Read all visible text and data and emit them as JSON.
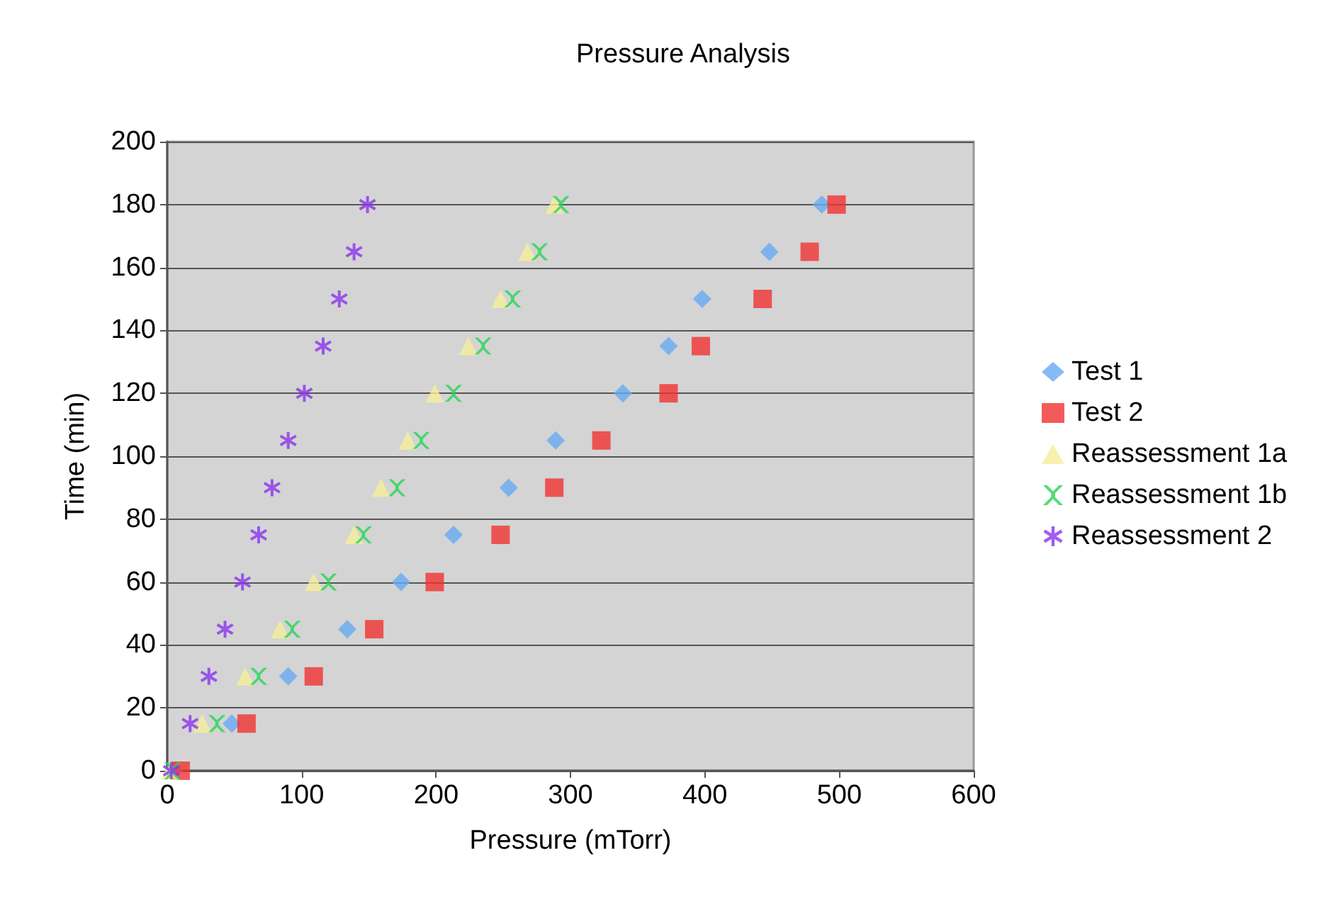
{
  "chart_data": {
    "type": "scatter",
    "title": "Pressure Analysis",
    "xlabel": "Pressure (mTorr)",
    "ylabel": "Time (min)",
    "xlim": [
      0,
      600
    ],
    "xticks": [
      0,
      100,
      200,
      300,
      400,
      500,
      600
    ],
    "ylim": [
      0,
      200
    ],
    "yticks": [
      0,
      20,
      40,
      60,
      80,
      100,
      120,
      140,
      160,
      180,
      200
    ],
    "grid": "y",
    "legend": "right",
    "series": [
      {
        "name": "Test 1",
        "color": "#66aaf2",
        "marker": "diamond",
        "x": [
          5,
          48,
          90,
          134,
          174,
          213,
          254,
          289,
          339,
          373,
          398,
          448,
          487
        ],
        "values": [
          0,
          15,
          30,
          45,
          60,
          75,
          90,
          105,
          120,
          135,
          150,
          165,
          180
        ]
      },
      {
        "name": "Test 2",
        "color": "#f03232",
        "marker": "square",
        "x": [
          10,
          59,
          109,
          154,
          199,
          248,
          288,
          323,
          373,
          397,
          443,
          478,
          498
        ],
        "values": [
          0,
          15,
          30,
          45,
          60,
          75,
          90,
          105,
          120,
          135,
          150,
          165,
          180
        ]
      },
      {
        "name": "Reassessment 1a",
        "color": "#f5ee9a",
        "marker": "triangle",
        "x": [
          2,
          26,
          58,
          84,
          109,
          139,
          159,
          179,
          199,
          224,
          248,
          268,
          288
        ],
        "values": [
          0,
          15,
          30,
          45,
          60,
          75,
          90,
          105,
          120,
          135,
          150,
          165,
          180
        ]
      },
      {
        "name": "Reassessment 1b",
        "color": "#22d655",
        "marker": "cross",
        "x": [
          4,
          37,
          68,
          93,
          120,
          146,
          171,
          189,
          213,
          235,
          257,
          277,
          293
        ],
        "values": [
          0,
          15,
          30,
          45,
          60,
          75,
          90,
          105,
          120,
          135,
          150,
          165,
          180
        ]
      },
      {
        "name": "Reassessment 2",
        "color": "#8a33ee",
        "marker": "star",
        "x": [
          3,
          17,
          31,
          43,
          56,
          68,
          78,
          90,
          102,
          116,
          128,
          139,
          149
        ],
        "values": [
          0,
          15,
          30,
          45,
          60,
          75,
          90,
          105,
          120,
          135,
          150,
          165,
          180
        ]
      }
    ]
  }
}
